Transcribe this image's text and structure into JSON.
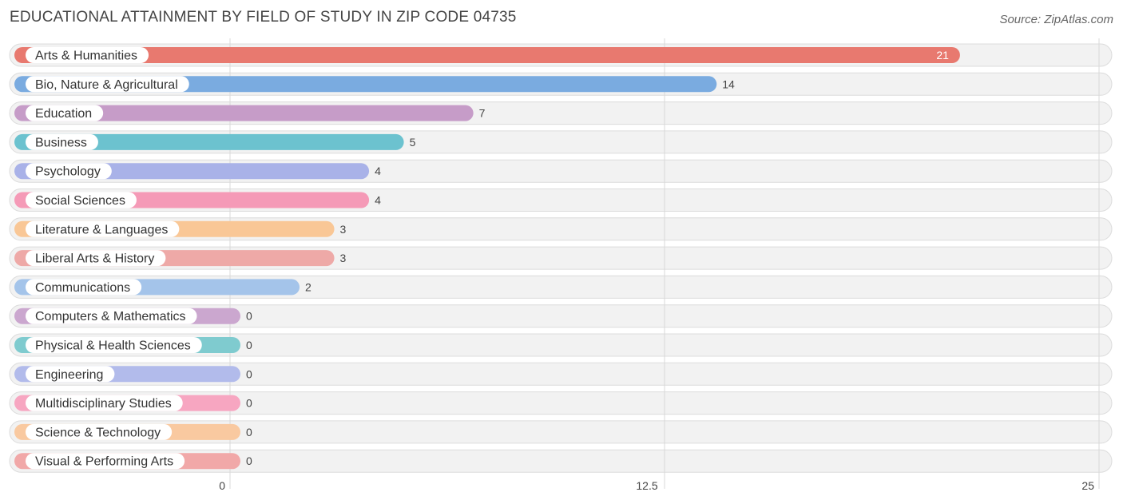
{
  "header": {
    "title": "EDUCATIONAL ATTAINMENT BY FIELD OF STUDY IN ZIP CODE 04735",
    "source": "Source: ZipAtlas.com"
  },
  "chart_data": {
    "type": "bar",
    "orientation": "horizontal",
    "title": "EDUCATIONAL ATTAINMENT BY FIELD OF STUDY IN ZIP CODE 04735",
    "xlim": [
      0,
      25
    ],
    "ticks": [
      0,
      12.5,
      25
    ],
    "tick_labels": [
      "0",
      "12.5",
      "25"
    ],
    "grid": true,
    "categories": [
      "Arts & Humanities",
      "Bio, Nature & Agricultural",
      "Education",
      "Business",
      "Psychology",
      "Social Sciences",
      "Literature & Languages",
      "Liberal Arts & History",
      "Communications",
      "Computers & Mathematics",
      "Physical & Health Sciences",
      "Engineering",
      "Multidisciplinary Studies",
      "Science & Technology",
      "Visual & Performing Arts"
    ],
    "values": [
      21,
      14,
      7,
      5,
      4,
      4,
      3,
      3,
      2,
      0,
      0,
      0,
      0,
      0,
      0
    ],
    "colors": [
      "#e8796f",
      "#7aabe0",
      "#c69cc8",
      "#6cc2cf",
      "#a9b2e8",
      "#f59ab7",
      "#f9c796",
      "#eea9a7",
      "#a4c4ea",
      "#cba7cf",
      "#7fcbcf",
      "#b2bbeb",
      "#f7a6c1",
      "#f9c9a0",
      "#f1a8a8"
    ]
  }
}
